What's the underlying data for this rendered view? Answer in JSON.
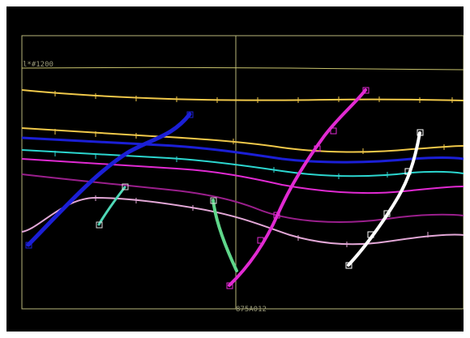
{
  "labels": {
    "top_left": "l*#1200",
    "bottom_center": "875A012"
  },
  "colors": {
    "background": "#000000",
    "frame": "#b7b67a",
    "top_horizon": "#c8c36d",
    "yellow": "#f0c84a",
    "blue": "#1b1fd6",
    "cyan": "#2cd6cf",
    "magenta": "#e12ad2",
    "purple": "#9a1f8c",
    "pink": "#e2a7d6",
    "green": "#5fd68a",
    "teal": "#4fd8b7",
    "white": "#ffffff"
  }
}
